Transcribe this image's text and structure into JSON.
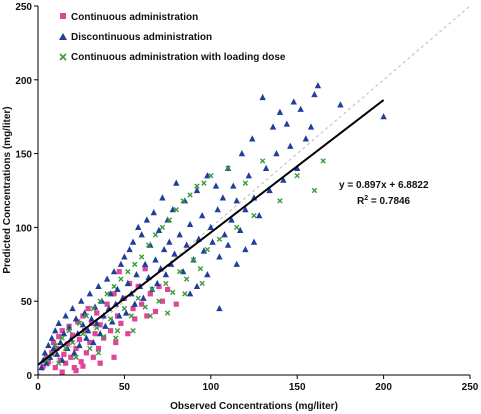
{
  "chart_data": {
    "type": "scatter",
    "xlabel": "Observed Concentrations (mg/liter)",
    "ylabel": "Predicted Concentrations (mg/liter)",
    "xlim": [
      0,
      250
    ],
    "ylim": [
      0,
      250
    ],
    "xticks": [
      "0",
      "50",
      "100",
      "150",
      "200",
      "250"
    ],
    "yticks": [
      "0",
      "50",
      "100",
      "150",
      "200",
      "250"
    ],
    "grid": false,
    "legend_position": "top-left",
    "colors": {
      "continuous": "#e0459b",
      "discontinuous": "#1f3f99",
      "loading": "#3a9a3a",
      "trendline": "#000000",
      "identity_line": "#bbbbbb"
    },
    "series": [
      {
        "name": "Continuous administration",
        "marker": "square",
        "points": [
          [
            3,
            6
          ],
          [
            5,
            12
          ],
          [
            6,
            9
          ],
          [
            8,
            15
          ],
          [
            9,
            22
          ],
          [
            10,
            5
          ],
          [
            11,
            18
          ],
          [
            12,
            26
          ],
          [
            13,
            10
          ],
          [
            14,
            30
          ],
          [
            15,
            14
          ],
          [
            16,
            8
          ],
          [
            17,
            21
          ],
          [
            18,
            33
          ],
          [
            19,
            12
          ],
          [
            20,
            27
          ],
          [
            21,
            5
          ],
          [
            22,
            18
          ],
          [
            23,
            36
          ],
          [
            24,
            24
          ],
          [
            25,
            9
          ],
          [
            26,
            40
          ],
          [
            27,
            30
          ],
          [
            28,
            15
          ],
          [
            29,
            45
          ],
          [
            30,
            22
          ],
          [
            31,
            35
          ],
          [
            32,
            12
          ],
          [
            33,
            28
          ],
          [
            34,
            42
          ],
          [
            35,
            18
          ],
          [
            36,
            34
          ],
          [
            38,
            25
          ],
          [
            40,
            48
          ],
          [
            42,
            30
          ],
          [
            44,
            55
          ],
          [
            45,
            22
          ],
          [
            46,
            40
          ],
          [
            47,
            70
          ],
          [
            48,
            35
          ],
          [
            50,
            52
          ],
          [
            52,
            28
          ],
          [
            53,
            62
          ],
          [
            55,
            45
          ],
          [
            56,
            38
          ],
          [
            58,
            60
          ],
          [
            60,
            48
          ],
          [
            62,
            72
          ],
          [
            63,
            40
          ],
          [
            65,
            55
          ],
          [
            68,
            43
          ],
          [
            70,
            60
          ],
          [
            72,
            50
          ],
          [
            75,
            58
          ],
          [
            80,
            48
          ],
          [
            14,
            2
          ],
          [
            22,
            3
          ],
          [
            26,
            6
          ],
          [
            36,
            8
          ],
          [
            44,
            12
          ]
        ]
      },
      {
        "name": "Discontinuous administration",
        "marker": "triangle",
        "points": [
          [
            2,
            5
          ],
          [
            3,
            10
          ],
          [
            4,
            15
          ],
          [
            5,
            8
          ],
          [
            6,
            20
          ],
          [
            7,
            12
          ],
          [
            8,
            25
          ],
          [
            9,
            18
          ],
          [
            10,
            30
          ],
          [
            11,
            14
          ],
          [
            12,
            35
          ],
          [
            13,
            22
          ],
          [
            14,
            10
          ],
          [
            15,
            28
          ],
          [
            16,
            40
          ],
          [
            17,
            18
          ],
          [
            18,
            32
          ],
          [
            19,
            24
          ],
          [
            20,
            45
          ],
          [
            21,
            15
          ],
          [
            22,
            38
          ],
          [
            23,
            28
          ],
          [
            24,
            20
          ],
          [
            25,
            50
          ],
          [
            26,
            34
          ],
          [
            27,
            42
          ],
          [
            28,
            25
          ],
          [
            29,
            30
          ],
          [
            30,
            55
          ],
          [
            31,
            38
          ],
          [
            32,
            22
          ],
          [
            33,
            46
          ],
          [
            34,
            35
          ],
          [
            35,
            60
          ],
          [
            36,
            28
          ],
          [
            37,
            50
          ],
          [
            38,
            40
          ],
          [
            39,
            33
          ],
          [
            40,
            65
          ],
          [
            41,
            45
          ],
          [
            42,
            55
          ],
          [
            43,
            36
          ],
          [
            44,
            70
          ],
          [
            45,
            48
          ],
          [
            46,
            58
          ],
          [
            47,
            40
          ],
          [
            48,
            75
          ],
          [
            49,
            52
          ],
          [
            50,
            80
          ],
          [
            51,
            42
          ],
          [
            52,
            62
          ],
          [
            53,
            85
          ],
          [
            54,
            55
          ],
          [
            55,
            90
          ],
          [
            56,
            48
          ],
          [
            57,
            68
          ],
          [
            58,
            100
          ],
          [
            59,
            60
          ],
          [
            60,
            95
          ],
          [
            61,
            52
          ],
          [
            62,
            75
          ],
          [
            63,
            105
          ],
          [
            64,
            66
          ],
          [
            65,
            88
          ],
          [
            66,
            58
          ],
          [
            67,
            110
          ],
          [
            68,
            78
          ],
          [
            69,
            62
          ],
          [
            70,
            98
          ],
          [
            71,
            72
          ],
          [
            72,
            120
          ],
          [
            73,
            85
          ],
          [
            74,
            68
          ],
          [
            75,
            105
          ],
          [
            76,
            90
          ],
          [
            77,
            75
          ],
          [
            78,
            112
          ],
          [
            79,
            82
          ],
          [
            80,
            130
          ],
          [
            82,
            95
          ],
          [
            84,
            70
          ],
          [
            85,
            118
          ],
          [
            86,
            88
          ],
          [
            88,
            102
          ],
          [
            90,
            78
          ],
          [
            92,
            125
          ],
          [
            93,
            92
          ],
          [
            95,
            108
          ],
          [
            96,
            84
          ],
          [
            98,
            135
          ],
          [
            100,
            100
          ],
          [
            101,
            90
          ],
          [
            103,
            128
          ],
          [
            104,
            112
          ],
          [
            105,
            80
          ],
          [
            107,
            120
          ],
          [
            108,
            95
          ],
          [
            110,
            140
          ],
          [
            112,
            105
          ],
          [
            113,
            128
          ],
          [
            115,
            118
          ],
          [
            117,
            98
          ],
          [
            118,
            150
          ],
          [
            120,
            112
          ],
          [
            122,
            135
          ],
          [
            124,
            160
          ],
          [
            125,
            120
          ],
          [
            128,
            108
          ],
          [
            130,
            188
          ],
          [
            132,
            140
          ],
          [
            134,
            125
          ],
          [
            136,
            168
          ],
          [
            138,
            150
          ],
          [
            140,
            178
          ],
          [
            142,
            132
          ],
          [
            144,
            170
          ],
          [
            146,
            155
          ],
          [
            148,
            185
          ],
          [
            150,
            140
          ],
          [
            152,
            180
          ],
          [
            155,
            160
          ],
          [
            158,
            168
          ],
          [
            160,
            190
          ],
          [
            162,
            196
          ],
          [
            175,
            183
          ],
          [
            200,
            175
          ],
          [
            88,
            55
          ],
          [
            98,
            68
          ],
          [
            105,
            45
          ],
          [
            115,
            75
          ],
          [
            92,
            60
          ],
          [
            110,
            88
          ],
          [
            120,
            85
          ],
          [
            125,
            90
          ]
        ]
      },
      {
        "name": "Continuous administration with loading dose",
        "marker": "x",
        "points": [
          [
            5,
            10
          ],
          [
            8,
            14
          ],
          [
            10,
            20
          ],
          [
            12,
            8
          ],
          [
            14,
            25
          ],
          [
            16,
            18
          ],
          [
            18,
            30
          ],
          [
            20,
            22
          ],
          [
            22,
            12
          ],
          [
            24,
            35
          ],
          [
            26,
            28
          ],
          [
            28,
            40
          ],
          [
            30,
            18
          ],
          [
            32,
            45
          ],
          [
            34,
            32
          ],
          [
            36,
            50
          ],
          [
            38,
            26
          ],
          [
            40,
            55
          ],
          [
            42,
            38
          ],
          [
            44,
            60
          ],
          [
            46,
            30
          ],
          [
            48,
            65
          ],
          [
            50,
            45
          ],
          [
            52,
            70
          ],
          [
            54,
            40
          ],
          [
            56,
            75
          ],
          [
            58,
            52
          ],
          [
            60,
            80
          ],
          [
            62,
            46
          ],
          [
            64,
            88
          ],
          [
            66,
            58
          ],
          [
            68,
            95
          ],
          [
            70,
            50
          ],
          [
            72,
            100
          ],
          [
            74,
            62
          ],
          [
            76,
            105
          ],
          [
            78,
            56
          ],
          [
            80,
            112
          ],
          [
            82,
            70
          ],
          [
            84,
            118
          ],
          [
            86,
            65
          ],
          [
            88,
            122
          ],
          [
            90,
            78
          ],
          [
            92,
            128
          ],
          [
            94,
            72
          ],
          [
            96,
            130
          ],
          [
            98,
            85
          ],
          [
            100,
            135
          ],
          [
            105,
            92
          ],
          [
            110,
            140
          ],
          [
            115,
            100
          ],
          [
            120,
            130
          ],
          [
            125,
            108
          ],
          [
            130,
            145
          ],
          [
            140,
            118
          ],
          [
            150,
            135
          ],
          [
            165,
            145
          ],
          [
            160,
            125
          ],
          [
            65,
            40
          ],
          [
            75,
            42
          ],
          [
            85,
            55
          ],
          [
            95,
            62
          ],
          [
            55,
            30
          ],
          [
            45,
            25
          ],
          [
            35,
            15
          ]
        ]
      }
    ],
    "trendline": {
      "equation": "y = 0.897x + 6.8822",
      "r_squared_label": "R",
      "r_squared_exponent": "2",
      "r_squared_value": " = 0.7846",
      "slope": 0.897,
      "intercept": 6.8822,
      "x_range": [
        0,
        200
      ]
    }
  }
}
